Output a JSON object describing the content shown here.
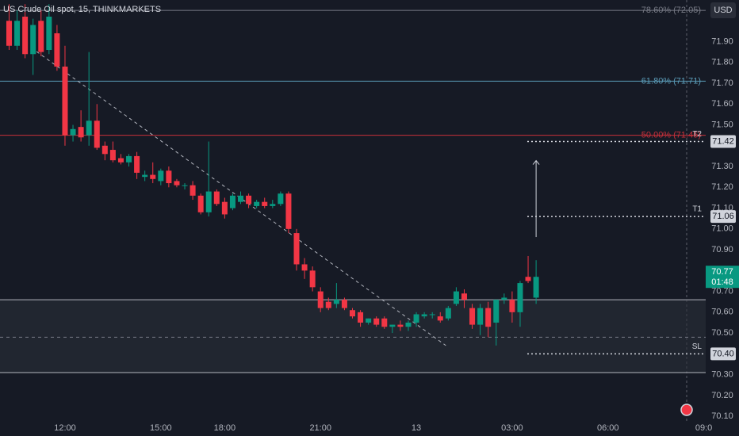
{
  "chart_data": {
    "type": "candlestick",
    "title": "US Crude Oil spot, 15, THINKMARKETS",
    "currency": "USD",
    "open": [
      72.0,
      71.88,
      72.02,
      71.84,
      72.0,
      71.86,
      71.94,
      71.78,
      71.45,
      71.49,
      71.45,
      71.52,
      71.4,
      71.38,
      71.34,
      71.32,
      71.35,
      71.25,
      71.26,
      71.23,
      71.28,
      71.23,
      71.21,
      71.21,
      71.16,
      71.08,
      71.18,
      71.13,
      71.1,
      71.13,
      71.16,
      71.11,
      71.13,
      71.11,
      71.12,
      71.17,
      70.98,
      70.83,
      70.8,
      70.7,
      70.65,
      70.64,
      70.66,
      70.61,
      70.6,
      70.55,
      70.57,
      70.57,
      70.53,
      70.54,
      70.53,
      70.55,
      70.58,
      70.59,
      70.58,
      70.57,
      70.64,
      70.69,
      70.62,
      70.54,
      70.62,
      70.55,
      70.66,
      70.66,
      70.6,
      70.77,
      70.67
    ],
    "high": [
      72.08,
      72.05,
      72.08,
      72.01,
      72.05,
      72.08,
      71.98,
      71.88,
      71.5,
      71.57,
      71.85,
      71.6,
      71.42,
      71.42,
      71.36,
      71.36,
      71.37,
      71.28,
      71.32,
      71.29,
      71.3,
      71.24,
      71.22,
      71.23,
      71.17,
      71.42,
      71.19,
      71.15,
      71.17,
      71.18,
      71.17,
      71.14,
      71.15,
      71.14,
      71.18,
      71.18,
      71.0,
      70.86,
      70.82,
      70.72,
      70.67,
      70.74,
      70.67,
      70.62,
      70.61,
      70.57,
      70.58,
      70.58,
      70.54,
      70.56,
      70.56,
      70.6,
      70.6,
      70.6,
      70.6,
      70.63,
      70.72,
      70.71,
      70.64,
      70.64,
      70.65,
      70.66,
      70.69,
      70.7,
      70.75,
      70.87,
      70.85
    ],
    "low": [
      71.86,
      71.86,
      71.82,
      71.74,
      71.83,
      71.84,
      71.76,
      71.4,
      71.42,
      71.42,
      71.4,
      71.38,
      71.33,
      71.32,
      71.31,
      71.3,
      71.24,
      71.23,
      71.22,
      71.21,
      71.2,
      71.2,
      71.19,
      71.14,
      71.07,
      71.06,
      71.11,
      71.05,
      71.09,
      71.12,
      71.1,
      71.1,
      71.1,
      71.1,
      71.11,
      70.98,
      70.8,
      70.76,
      70.7,
      70.6,
      70.61,
      70.62,
      70.61,
      70.57,
      70.53,
      70.54,
      70.53,
      70.52,
      70.5,
      70.51,
      70.51,
      70.53,
      70.57,
      70.57,
      70.55,
      70.56,
      70.63,
      70.62,
      70.52,
      70.49,
      70.48,
      70.44,
      70.64,
      70.55,
      70.53,
      70.74,
      70.64
    ],
    "close": [
      71.88,
      72.0,
      71.84,
      71.98,
      71.85,
      72.02,
      71.78,
      71.45,
      71.48,
      71.44,
      71.52,
      71.39,
      71.36,
      71.33,
      71.32,
      71.35,
      71.27,
      71.26,
      71.24,
      71.28,
      71.22,
      71.21,
      71.21,
      71.16,
      71.08,
      71.18,
      71.12,
      71.07,
      71.16,
      71.16,
      71.12,
      71.13,
      71.11,
      71.12,
      71.17,
      71.0,
      70.83,
      70.8,
      70.72,
      70.62,
      70.62,
      70.66,
      70.62,
      70.58,
      70.55,
      70.57,
      70.54,
      70.53,
      70.54,
      70.53,
      70.55,
      70.59,
      70.59,
      70.59,
      70.56,
      70.62,
      70.7,
      70.66,
      70.54,
      70.62,
      70.53,
      70.66,
      70.67,
      70.6,
      70.74,
      70.75,
      70.77
    ],
    "up_color": "#089981",
    "down_color": "#f23645",
    "xlim": [
      -1.14,
      87.24
    ],
    "xticks": [
      {
        "value": 7,
        "label": "12:00"
      },
      {
        "value": 19,
        "label": "15:00"
      },
      {
        "value": 27,
        "label": "18:00"
      },
      {
        "value": 39,
        "label": "21:00"
      },
      {
        "value": 51,
        "label": "13"
      },
      {
        "value": 63,
        "label": "03:00"
      },
      {
        "value": 75,
        "label": "06:00"
      },
      {
        "value": 87,
        "label": "09:0"
      }
    ],
    "ylim": [
      70.07,
      72.1
    ],
    "yticks": [
      {
        "value": 70.1,
        "label": "70.10"
      },
      {
        "value": 70.2,
        "label": "70.20"
      },
      {
        "value": 70.3,
        "label": "70.30"
      },
      {
        "value": 70.5,
        "label": "70.50"
      },
      {
        "value": 70.6,
        "label": "70.60"
      },
      {
        "value": 70.7,
        "label": "70.70"
      },
      {
        "value": 70.8,
        "label": "70.80"
      },
      {
        "value": 70.9,
        "label": "70.90"
      },
      {
        "value": 71,
        "label": "71.00"
      },
      {
        "value": 71.1,
        "label": "71.10"
      },
      {
        "value": 71.2,
        "label": "71.20"
      },
      {
        "value": 71.3,
        "label": "71.30"
      },
      {
        "value": 71.5,
        "label": "71.50"
      },
      {
        "value": 71.6,
        "label": "71.60"
      },
      {
        "value": 71.7,
        "label": "71.70"
      },
      {
        "value": 71.8,
        "label": "71.80"
      },
      {
        "value": 71.9,
        "label": "71.90"
      }
    ],
    "grid": false,
    "levels": [
      {
        "label": "78.60% (72.05)",
        "value": 72.05,
        "color": "#787b86"
      },
      {
        "label": "61.80% (71.71)",
        "value": 71.71,
        "color": "#5b9cb8"
      },
      {
        "label": "50.00% (71.45)",
        "value": 71.45,
        "color": "#c9303a"
      }
    ],
    "targets": [
      {
        "name": "T2",
        "value": 71.42,
        "value_label": "71.42"
      },
      {
        "name": "T1",
        "value": 71.06,
        "value_label": "71.06"
      },
      {
        "name": "SL",
        "value": 70.4,
        "value_label": "70.40"
      }
    ],
    "zone": {
      "top": 70.66,
      "bottom": 70.31,
      "mid": 70.48
    },
    "trendline": {
      "x": [
        2.8,
        54.7
      ],
      "y": [
        71.87,
        70.44
      ]
    },
    "last_price": 70.77,
    "countdown": "01:48"
  }
}
